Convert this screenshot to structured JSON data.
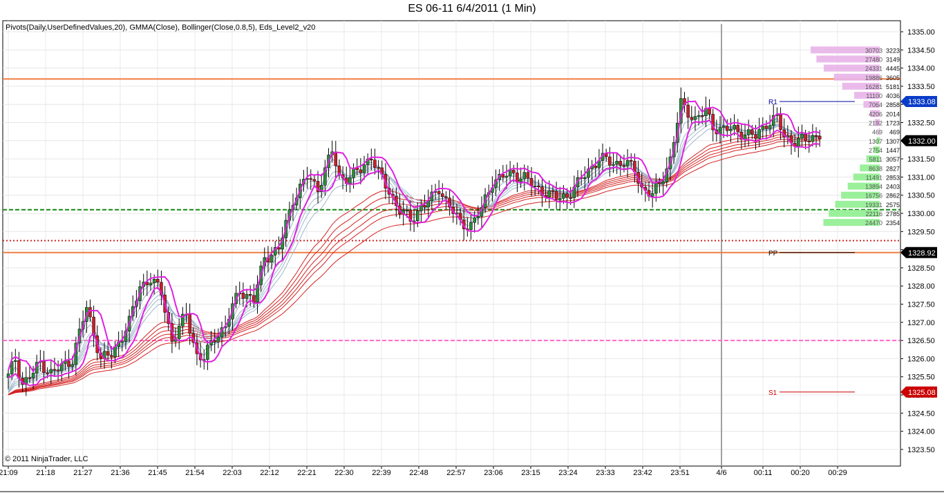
{
  "window": {
    "title": "ES 06-11  6/4/2011 (1 Min)"
  },
  "indicators_label": "Pivots(Daily,UserDefinedValues,20), GMMA(Close), Bollinger(Close,0.8,5), Eds_Level2_v20",
  "copyright": "© 2011 NinjaTrader, LLC",
  "colors": {
    "up_candle": "#2e8b3a",
    "down_candle": "#cc1f2b",
    "bollinger": "#e020e0",
    "gmma_short": "#9fb6cc",
    "gmma_long": "#d42020",
    "pivot_r1": "#0000a0",
    "pivot_pp": "#000000",
    "pivot_s1": "#cc0000",
    "orange_line": "#f07a40",
    "green_dash": "#118811",
    "red_dot": "#cc2222",
    "pink_dash": "#ff66cc",
    "ask_bar": "#e8b4e8",
    "bid_bar": "#90ee90"
  },
  "chart_data": {
    "type": "candlestick",
    "title": "ES 06-11  6/4/2011 (1 Min)",
    "x_tick_labels": [
      "21:09",
      "21:18",
      "21:27",
      "21:36",
      "21:45",
      "21:54",
      "22:03",
      "22:12",
      "22:21",
      "22:30",
      "22:39",
      "22:48",
      "22:57",
      "23:06",
      "23:15",
      "23:24",
      "23:33",
      "23:42",
      "23:51",
      "4/6",
      "00:11",
      "00:20",
      "00:29"
    ],
    "y_tick_labels": [
      "1335.00",
      "1334.50",
      "1334.00",
      "1333.50",
      "1333.00",
      "1332.50",
      "1332.00",
      "1331.50",
      "1331.00",
      "1330.50",
      "1330.00",
      "1329.50",
      "1329.00",
      "1328.50",
      "1328.00",
      "1327.50",
      "1327.00",
      "1326.50",
      "1326.00",
      "1325.50",
      "1325.00",
      "1324.50",
      "1324.00",
      "1323.50"
    ],
    "ylim": [
      1323.25,
      1335.25
    ],
    "close_path": [
      [
        0,
        1325.5
      ],
      [
        2,
        1326.0
      ],
      [
        4,
        1325.3
      ],
      [
        7,
        1325.6
      ],
      [
        9,
        1325.9
      ],
      [
        12,
        1325.6
      ],
      [
        14,
        1325.7
      ],
      [
        18,
        1326.0
      ],
      [
        22,
        1327.4
      ],
      [
        26,
        1326.0
      ],
      [
        29,
        1326.1
      ],
      [
        34,
        1327.0
      ],
      [
        37,
        1328.0
      ],
      [
        40,
        1328.2
      ],
      [
        43,
        1327.8
      ],
      [
        46,
        1326.5
      ],
      [
        50,
        1327.2
      ],
      [
        53,
        1326.1
      ],
      [
        55,
        1326.0
      ],
      [
        58,
        1326.6
      ],
      [
        61,
        1326.9
      ],
      [
        65,
        1327.9
      ],
      [
        69,
        1327.6
      ],
      [
        72,
        1328.8
      ],
      [
        76,
        1329.0
      ],
      [
        80,
        1330.4
      ],
      [
        84,
        1331.0
      ],
      [
        87,
        1330.7
      ],
      [
        91,
        1331.7
      ],
      [
        93,
        1331.0
      ],
      [
        96,
        1331.0
      ],
      [
        99,
        1331.2
      ],
      [
        102,
        1331.6
      ],
      [
        104,
        1331.1
      ],
      [
        107,
        1330.6
      ],
      [
        110,
        1330.1
      ],
      [
        113,
        1329.8
      ],
      [
        116,
        1330.2
      ],
      [
        119,
        1330.4
      ],
      [
        121,
        1330.7
      ],
      [
        124,
        1330.2
      ],
      [
        127,
        1329.7
      ],
      [
        130,
        1329.7
      ],
      [
        133,
        1330.1
      ],
      [
        136,
        1330.9
      ],
      [
        139,
        1331.0
      ],
      [
        142,
        1331.1
      ],
      [
        145,
        1331.0
      ],
      [
        148,
        1330.7
      ],
      [
        151,
        1330.6
      ],
      [
        154,
        1330.4
      ],
      [
        157,
        1330.5
      ],
      [
        160,
        1330.8
      ],
      [
        163,
        1331.2
      ],
      [
        166,
        1331.5
      ],
      [
        170,
        1331.4
      ],
      [
        173,
        1331.4
      ],
      [
        176,
        1331.2
      ],
      [
        178,
        1330.7
      ],
      [
        181,
        1330.5
      ],
      [
        183,
        1330.8
      ],
      [
        186,
        1331.5
      ],
      [
        188,
        1332.5
      ],
      [
        189,
        1333.0
      ],
      [
        191,
        1332.8
      ],
      [
        193,
        1332.6
      ],
      [
        196,
        1332.8
      ],
      [
        198,
        1332.4
      ],
      [
        201,
        1332.3
      ],
      [
        204,
        1332.3
      ],
      [
        207,
        1332.2
      ],
      [
        210,
        1332.1
      ],
      [
        213,
        1332.5
      ],
      [
        216,
        1332.6
      ],
      [
        218,
        1332.1
      ],
      [
        221,
        1332.0
      ],
      [
        224,
        1332.0
      ],
      [
        228,
        1332.2
      ]
    ],
    "series": [
      {
        "name": "R1",
        "value": 1333.08
      },
      {
        "name": "PP",
        "value": 1328.92
      },
      {
        "name": "S1",
        "value": 1325.08
      }
    ],
    "price_badges": [
      {
        "label": "1333.08",
        "value": 1333.08,
        "bg": "#0a3cc8",
        "fg": "#ffffff"
      },
      {
        "label": "1332.00",
        "value": 1332.0,
        "bg": "#000000",
        "fg": "#ffffff"
      },
      {
        "label": "1328.92",
        "value": 1328.92,
        "bg": "#000000",
        "fg": "#ffffff"
      },
      {
        "label": "1325.08",
        "value": 1325.08,
        "bg": "#cc0000",
        "fg": "#ffffff"
      }
    ],
    "horizontal_lines": [
      {
        "name": "orange-upper",
        "value": 1333.7,
        "style": "solid",
        "color": "#f07a40"
      },
      {
        "name": "green-dash",
        "value": 1330.1,
        "style": "dash",
        "color": "#118811"
      },
      {
        "name": "red-dot",
        "value": 1329.25,
        "style": "dot",
        "color": "#cc2222"
      },
      {
        "name": "orange-pp",
        "value": 1328.92,
        "style": "solid",
        "color": "#f07a40"
      },
      {
        "name": "pink-dash",
        "value": 1326.5,
        "style": "dash",
        "color": "#ff66cc"
      }
    ],
    "level2": [
      {
        "price": 1334.5,
        "big": "30703",
        "small": "3223",
        "side": "ask"
      },
      {
        "price": 1334.25,
        "big": "27480",
        "small": "3149",
        "side": "ask"
      },
      {
        "price": 1334.0,
        "big": "24331",
        "small": "4445",
        "side": "ask"
      },
      {
        "price": 1333.75,
        "big": "19886",
        "small": "3605",
        "side": "ask"
      },
      {
        "price": 1333.5,
        "big": "16281",
        "small": "5181",
        "side": "ask"
      },
      {
        "price": 1333.25,
        "big": "11100",
        "small": "4036",
        "side": "ask"
      },
      {
        "price": 1333.0,
        "big": "7064",
        "small": "2858",
        "side": "ask"
      },
      {
        "price": 1332.75,
        "big": "4206",
        "small": "2014",
        "side": "ask"
      },
      {
        "price": 1332.5,
        "big": "2192",
        "small": "1723",
        "side": "ask"
      },
      {
        "price": 1332.25,
        "big": "469",
        "small": "469",
        "side": "ask"
      },
      {
        "price": 1332.0,
        "big": "1307",
        "small": "1307",
        "side": "bid"
      },
      {
        "price": 1331.75,
        "big": "2754",
        "small": "1447",
        "side": "bid"
      },
      {
        "price": 1331.5,
        "big": "5811",
        "small": "3057",
        "side": "bid"
      },
      {
        "price": 1331.25,
        "big": "8638",
        "small": "2827",
        "side": "bid"
      },
      {
        "price": 1331.0,
        "big": "11491",
        "small": "2853",
        "side": "bid"
      },
      {
        "price": 1330.75,
        "big": "13894",
        "small": "2403",
        "side": "bid"
      },
      {
        "price": 1330.5,
        "big": "16756",
        "small": "2862",
        "side": "bid"
      },
      {
        "price": 1330.25,
        "big": "19331",
        "small": "2575",
        "side": "bid"
      },
      {
        "price": 1330.0,
        "big": "22116",
        "small": "2785",
        "side": "bid"
      },
      {
        "price": 1329.75,
        "big": "24470",
        "small": "2354",
        "side": "bid"
      }
    ]
  }
}
